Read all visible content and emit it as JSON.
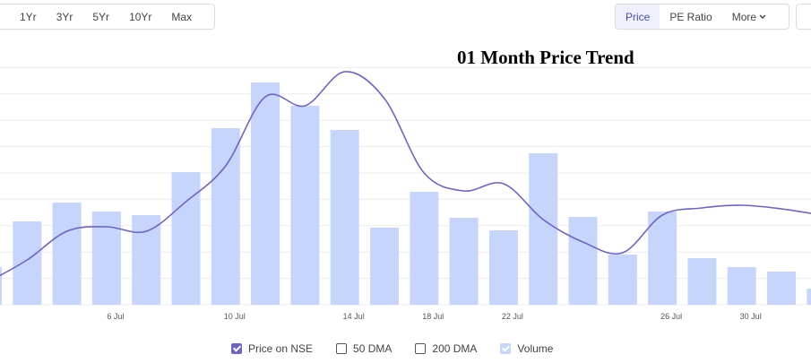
{
  "ui": {
    "range_buttons": [
      "1Yr",
      "3Yr",
      "5Yr",
      "10Yr",
      "Max"
    ],
    "view_buttons": [
      "Price",
      "PE Ratio",
      "More"
    ],
    "active_view": 0
  },
  "chart_data": {
    "type": "bar-line",
    "title": "01 Month Price Trend",
    "categories": [
      null,
      null,
      null,
      "6 Jul",
      null,
      null,
      "10 Jul",
      null,
      null,
      "14 Jul",
      null,
      "18 Jul",
      null,
      "22 Jul",
      null,
      null,
      null,
      "26 Jul",
      null,
      "30 Jul",
      null,
      null
    ],
    "series": [
      {
        "name": "Price on NSE",
        "type": "line",
        "color": "#6f63c4",
        "axis": "y2",
        "checked": true,
        "values": [
          25,
          50,
          82,
          87,
          82,
          115,
          155,
          232,
          222,
          260,
          230,
          147,
          127,
          135,
          95,
          70,
          58,
          100,
          108,
          111,
          107,
          100
        ]
      },
      {
        "name": "Volume",
        "type": "bar",
        "color": "#c5d5fb",
        "checked": true,
        "values": [
          42,
          93,
          114,
          104,
          100,
          148,
          197,
          248,
          222,
          195,
          86,
          126,
          97,
          83,
          169,
          98,
          56,
          104,
          52,
          42,
          37,
          18
        ]
      }
    ],
    "unchecked_legend": [
      "50 DMA",
      "200 DMA"
    ],
    "ylim": [
      0,
      280
    ],
    "y2lim": [
      0,
      280
    ],
    "grid": true
  }
}
